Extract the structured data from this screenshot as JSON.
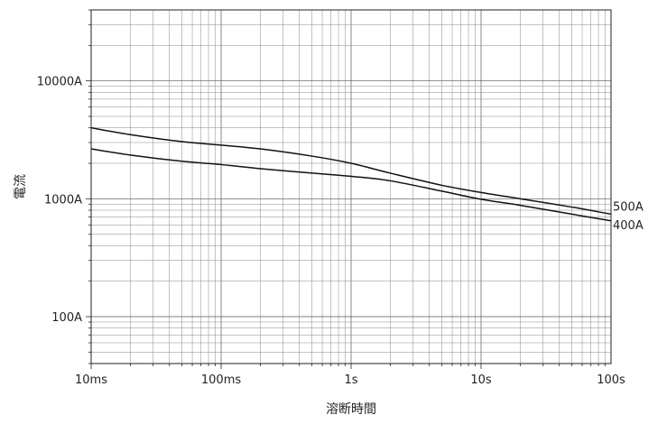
{
  "chart_data": {
    "type": "line",
    "title": "",
    "xlabel": "溶断時間",
    "ylabel": "電流",
    "x_scale": "log",
    "y_scale": "log",
    "xlim_seconds": [
      0.01,
      100
    ],
    "ylim_amperes": [
      40,
      40000
    ],
    "grid": true,
    "x_ticks": [
      {
        "value": 0.01,
        "label": "10ms"
      },
      {
        "value": 0.1,
        "label": "100ms"
      },
      {
        "value": 1,
        "label": "1s"
      },
      {
        "value": 10,
        "label": "10s"
      },
      {
        "value": 100,
        "label": "100s"
      }
    ],
    "y_ticks": [
      {
        "value": 100,
        "label": "100A"
      },
      {
        "value": 1000,
        "label": "1000A"
      },
      {
        "value": 10000,
        "label": "10000A"
      }
    ],
    "series": [
      {
        "name": "500A",
        "x": [
          0.01,
          0.02,
          0.05,
          0.1,
          0.2,
          0.5,
          1,
          2,
          5,
          10,
          20,
          50,
          100
        ],
        "y": [
          4000,
          3500,
          3050,
          2850,
          2650,
          2300,
          2000,
          1650,
          1300,
          1130,
          1000,
          850,
          740
        ]
      },
      {
        "name": "400A",
        "x": [
          0.01,
          0.02,
          0.05,
          0.1,
          0.2,
          0.5,
          1,
          2,
          5,
          10,
          20,
          50,
          100
        ],
        "y": [
          2650,
          2350,
          2080,
          1950,
          1800,
          1650,
          1550,
          1420,
          1160,
          990,
          880,
          740,
          650
        ]
      }
    ]
  }
}
